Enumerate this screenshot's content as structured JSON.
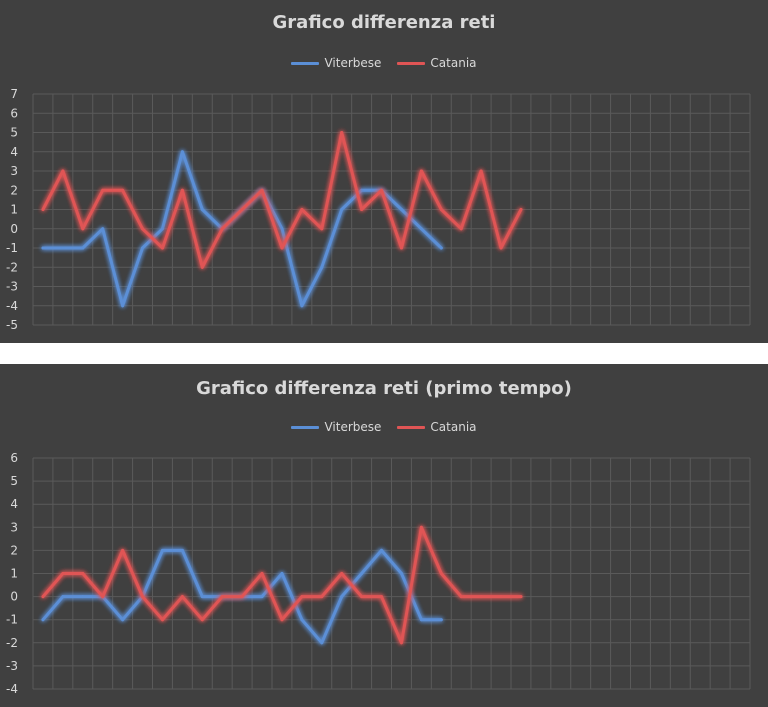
{
  "colors": {
    "background": "#404040",
    "grid": "#5a5a5a",
    "text": "#d9d9d9",
    "viterbese": "#5b8fd6",
    "catania": "#e05555"
  },
  "chart_data": [
    {
      "type": "line",
      "title": "Grafico differenza reti",
      "xlabel": "",
      "ylabel": "",
      "ylim": [
        -5,
        7
      ],
      "yticks": [
        "7",
        "6",
        "5",
        "4",
        "3",
        "2",
        "1",
        "0",
        "-1",
        "-2",
        "-3",
        "-4",
        "-5"
      ],
      "num_x_slots": 36,
      "grid": true,
      "legend": "top-center",
      "series": [
        {
          "name": "Viterbese",
          "values": [
            -1,
            -1,
            -1,
            0,
            -4,
            -1,
            0,
            4,
            1,
            0,
            1,
            2,
            0,
            -4,
            -2,
            1,
            2,
            2,
            1,
            0,
            -1
          ]
        },
        {
          "name": "Catania",
          "values": [
            1,
            3,
            0,
            2,
            2,
            0,
            -1,
            2,
            -2,
            0,
            1,
            2,
            -1,
            1,
            0,
            5,
            1,
            2,
            -1,
            3,
            1,
            0,
            3,
            -1,
            1
          ]
        }
      ]
    },
    {
      "type": "line",
      "title": "Grafico differenza reti (primo tempo)",
      "xlabel": "",
      "ylabel": "",
      "ylim": [
        -4,
        6
      ],
      "yticks": [
        "6",
        "5",
        "4",
        "3",
        "2",
        "1",
        "0",
        "-1",
        "-2",
        "-3",
        "-4"
      ],
      "num_x_slots": 36,
      "grid": true,
      "legend": "top-center",
      "series": [
        {
          "name": "Viterbese",
          "values": [
            -1,
            0,
            0,
            0,
            -1,
            0,
            2,
            2,
            0,
            0,
            0,
            0,
            1,
            -1,
            -2,
            0,
            1,
            2,
            1,
            -1,
            -1
          ]
        },
        {
          "name": "Catania",
          "values": [
            0,
            1,
            1,
            0,
            2,
            0,
            -1,
            0,
            -1,
            0,
            0,
            1,
            -1,
            0,
            0,
            1,
            0,
            0,
            -2,
            3,
            1,
            0,
            0,
            0,
            0
          ]
        }
      ]
    }
  ]
}
